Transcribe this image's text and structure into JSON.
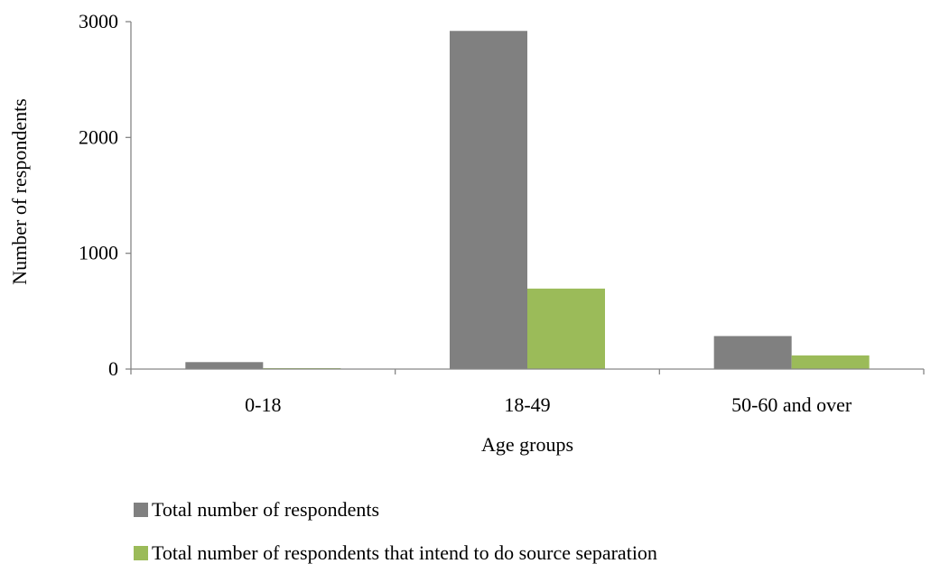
{
  "chart_data": {
    "type": "bar",
    "title": "",
    "xlabel": "Age groups",
    "ylabel": "Number of respondents",
    "categories": [
      "0-18",
      "18-49",
      "50-60 and over"
    ],
    "series": [
      {
        "name": "Total number of respondents",
        "color": "#808080",
        "values": [
          60,
          2920,
          285
        ]
      },
      {
        "name": "Total number of respondents that intend to do source separation",
        "color": "#9BBB59",
        "values": [
          8,
          695,
          118
        ]
      }
    ],
    "ylim": [
      0,
      3000
    ],
    "yticks": [
      "0",
      "1000",
      "2000",
      "3000"
    ],
    "grid": false,
    "legend_position": "bottom"
  }
}
